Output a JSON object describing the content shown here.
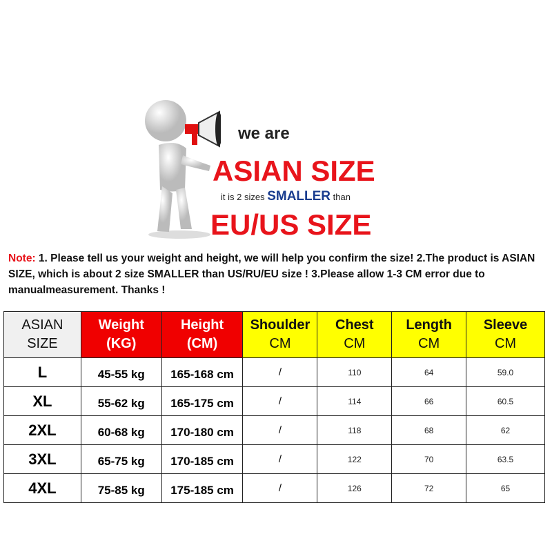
{
  "banner": {
    "we_are": "we are",
    "asian_size": "ASIAN SIZE",
    "smaller_pre": "it is 2 sizes",
    "smaller_word": "SMALLER",
    "smaller_post": "than",
    "eu_us_size": "EU/US SIZE",
    "figure_icon": "megaphone-figure-icon"
  },
  "note": {
    "label": "Note:",
    "text": " 1. Please tell us your weight and height, we will help you confirm the size!  2.The product is ASIAN SIZE, which is about 2 size SMALLER than US/RU/EU size ! 3.Please allow 1-3 CM error due to manualmeasurement.  Thanks !"
  },
  "colors": {
    "red": "#f00000",
    "yellow": "#ffff00",
    "grey": "#f0f0f0"
  },
  "table": {
    "headers": [
      {
        "top": "ASIAN",
        "bottom": "SIZE"
      },
      {
        "top": "Weight",
        "bottom": "(KG)"
      },
      {
        "top": "Height",
        "bottom": "(CM)"
      },
      {
        "top": "Shoulder",
        "bottom": "CM"
      },
      {
        "top": "Chest",
        "bottom": "CM"
      },
      {
        "top": "Length",
        "bottom": "CM"
      },
      {
        "top": "Sleeve",
        "bottom": "CM"
      }
    ],
    "rows": [
      [
        "L",
        "45-55  kg",
        "165-168 cm",
        "/",
        "110",
        "64",
        "59.0"
      ],
      [
        "XL",
        "55-62  kg",
        "165-175 cm",
        "/",
        "114",
        "66",
        "60.5"
      ],
      [
        "2XL",
        "60-68  kg",
        "170-180 cm",
        "/",
        "118",
        "68",
        "62"
      ],
      [
        "3XL",
        "65-75  kg",
        "170-185 cm",
        "/",
        "122",
        "70",
        "63.5"
      ],
      [
        "4XL",
        "75-85  kg",
        "175-185 cm",
        "/",
        "126",
        "72",
        "65"
      ]
    ]
  }
}
